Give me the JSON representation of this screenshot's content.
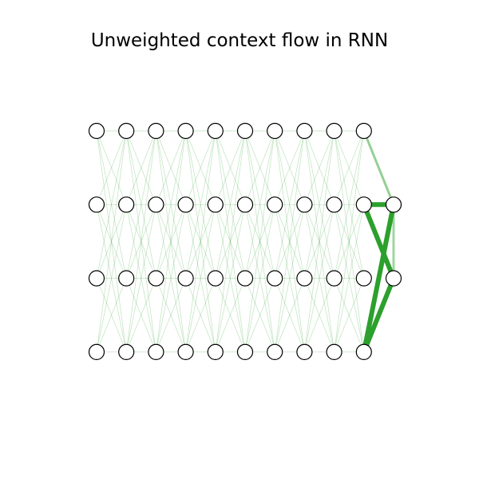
{
  "title": "Unweighted context flow in RNN",
  "colors": {
    "edge": "#2ca02c",
    "node_fill": "#ffffff",
    "node_stroke": "#000000",
    "background": "#ffffff"
  },
  "layers": {
    "main_columns": 10,
    "main_rows": 4,
    "extra_column_rows": 2
  },
  "light_edge_opacity": 0.3,
  "highlight_edges": [
    {
      "from": [
        9,
        0
      ],
      "to": [
        10,
        0
      ],
      "opacity": 0.5
    },
    {
      "from": [
        9,
        1
      ],
      "to": [
        10,
        0
      ],
      "opacity": 1.0
    },
    {
      "from": [
        9,
        3
      ],
      "to": [
        10,
        0
      ],
      "opacity": 1.0
    },
    {
      "from": [
        9,
        1
      ],
      "to": [
        10,
        1
      ],
      "opacity": 1.0
    },
    {
      "from": [
        9,
        3
      ],
      "to": [
        10,
        1
      ],
      "opacity": 1.0
    },
    {
      "from": [
        10,
        0
      ],
      "to": [
        10,
        1
      ],
      "opacity": 0.45
    }
  ]
}
